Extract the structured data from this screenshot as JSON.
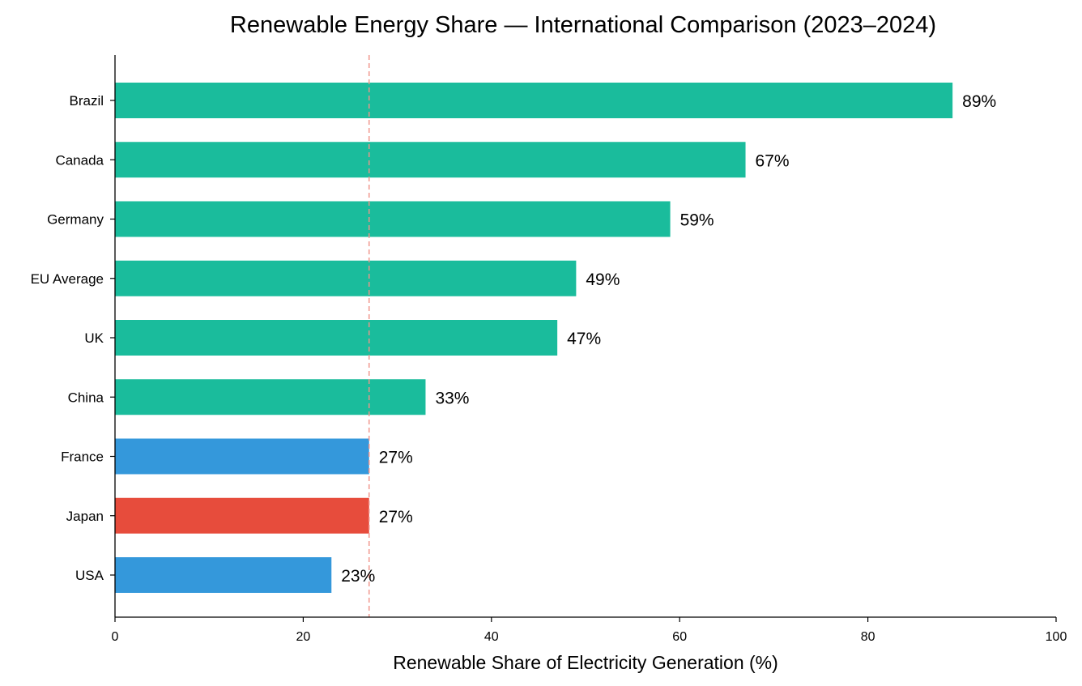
{
  "chart_data": {
    "type": "bar",
    "orientation": "horizontal",
    "title": "Renewable Energy Share — International Comparison (2023–2024)",
    "xlabel": "Renewable Share of Electricity Generation (%)",
    "ylabel": "",
    "xlim": [
      0,
      100
    ],
    "xticks": [
      0,
      20,
      40,
      60,
      80,
      100
    ],
    "grid": false,
    "legend": null,
    "reference_line": {
      "value": 27,
      "style": "dashed",
      "color": "#f1948a"
    },
    "categories": [
      "Brazil",
      "Canada",
      "Germany",
      "EU Average",
      "UK",
      "China",
      "France",
      "Japan",
      "USA"
    ],
    "values": [
      89,
      67,
      59,
      49,
      47,
      33,
      27,
      27,
      23
    ],
    "labels": [
      "89%",
      "67%",
      "59%",
      "49%",
      "47%",
      "33%",
      "27%",
      "27%",
      "23%"
    ],
    "colors": [
      "#1abc9c",
      "#1abc9c",
      "#1abc9c",
      "#1abc9c",
      "#1abc9c",
      "#1abc9c",
      "#3498db",
      "#e74c3c",
      "#3498db"
    ]
  }
}
